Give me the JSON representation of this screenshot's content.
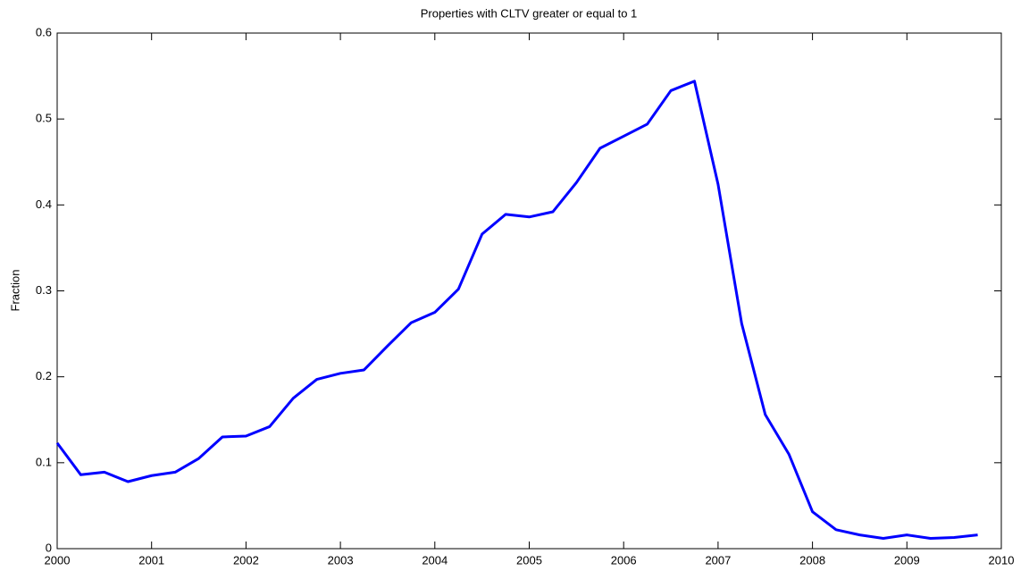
{
  "chart_data": {
    "type": "line",
    "title": "Properties with CLTV greater or equal to 1",
    "y_label": "Fraction",
    "x": [
      2000,
      2000.25,
      2000.5,
      2000.75,
      2001,
      2001.25,
      2001.5,
      2001.75,
      2002,
      2002.25,
      2002.5,
      2002.75,
      2003,
      2003.25,
      2003.5,
      2003.75,
      2004,
      2004.25,
      2004.5,
      2004.75,
      2005,
      2005.25,
      2005.5,
      2005.75,
      2006,
      2006.25,
      2006.5,
      2006.75,
      2007,
      2007.25,
      2007.5,
      2007.75,
      2008,
      2008.25,
      2008.5,
      2008.75,
      2009,
      2009.25,
      2009.5,
      2009.75
    ],
    "series": [
      {
        "color": "#0000ff",
        "values": [
          0.123,
          0.086,
          0.089,
          0.078,
          0.085,
          0.089,
          0.105,
          0.13,
          0.131,
          0.142,
          0.175,
          0.197,
          0.204,
          0.208,
          0.236,
          0.263,
          0.275,
          0.302,
          0.366,
          0.389,
          0.386,
          0.392,
          0.426,
          0.466,
          0.48,
          0.494,
          0.533,
          0.544,
          0.424,
          0.262,
          0.156,
          0.11,
          0.043,
          0.022,
          0.016,
          0.012,
          0.016,
          0.012,
          0.013,
          0.016
        ]
      }
    ],
    "xlim": [
      2000,
      2010
    ],
    "xticks": [
      2000,
      2001,
      2002,
      2003,
      2004,
      2005,
      2006,
      2007,
      2008,
      2009,
      2010
    ],
    "ylim": [
      0,
      0.6
    ],
    "yticks": [
      0,
      0.1,
      0.2,
      0.3,
      0.4,
      0.5,
      0.6
    ],
    "grid": false
  }
}
